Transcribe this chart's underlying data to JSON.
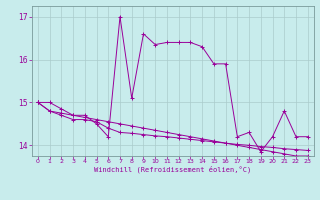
{
  "xlabel": "Windchill (Refroidissement éolien,°C)",
  "bg_color": "#c8ecec",
  "line_color": "#990099",
  "grid_color": "#aacccc",
  "xlim": [
    -0.5,
    23.5
  ],
  "ylim": [
    13.75,
    17.25
  ],
  "yticks": [
    14,
    15,
    16,
    17
  ],
  "xticks": [
    0,
    1,
    2,
    3,
    4,
    5,
    6,
    7,
    8,
    9,
    10,
    11,
    12,
    13,
    14,
    15,
    16,
    17,
    18,
    19,
    20,
    21,
    22,
    23
  ],
  "series1_x": [
    0,
    1,
    2,
    3,
    4,
    5,
    6,
    7,
    8,
    9,
    10,
    11,
    12,
    13,
    14,
    15,
    16,
    17,
    18,
    19,
    20,
    21,
    22,
    23
  ],
  "series1_y": [
    15.0,
    15.0,
    14.85,
    14.7,
    14.7,
    14.5,
    14.2,
    17.0,
    15.1,
    16.6,
    16.35,
    16.4,
    16.4,
    16.4,
    16.3,
    15.9,
    15.9,
    14.2,
    14.3,
    13.85,
    14.2,
    14.8,
    14.2,
    14.2
  ],
  "series2_x": [
    0,
    1,
    2,
    3,
    4,
    5,
    6,
    7,
    8,
    9,
    10,
    11,
    12,
    13,
    14,
    15,
    16,
    17,
    18,
    19,
    20,
    21,
    22,
    23
  ],
  "series2_y": [
    15.0,
    14.8,
    14.75,
    14.7,
    14.65,
    14.6,
    14.55,
    14.5,
    14.45,
    14.4,
    14.35,
    14.3,
    14.25,
    14.2,
    14.15,
    14.1,
    14.05,
    14.0,
    13.95,
    13.9,
    13.85,
    13.8,
    13.75,
    13.75
  ],
  "series3_x": [
    0,
    1,
    2,
    3,
    4,
    5,
    6,
    7,
    8,
    9,
    10,
    11,
    12,
    13,
    14,
    15,
    16,
    17,
    18,
    19,
    20,
    21,
    22,
    23
  ],
  "series3_y": [
    15.0,
    14.8,
    14.7,
    14.6,
    14.6,
    14.55,
    14.4,
    14.3,
    14.28,
    14.25,
    14.22,
    14.2,
    14.17,
    14.14,
    14.11,
    14.08,
    14.05,
    14.02,
    14.0,
    13.97,
    13.95,
    13.92,
    13.9,
    13.88
  ]
}
